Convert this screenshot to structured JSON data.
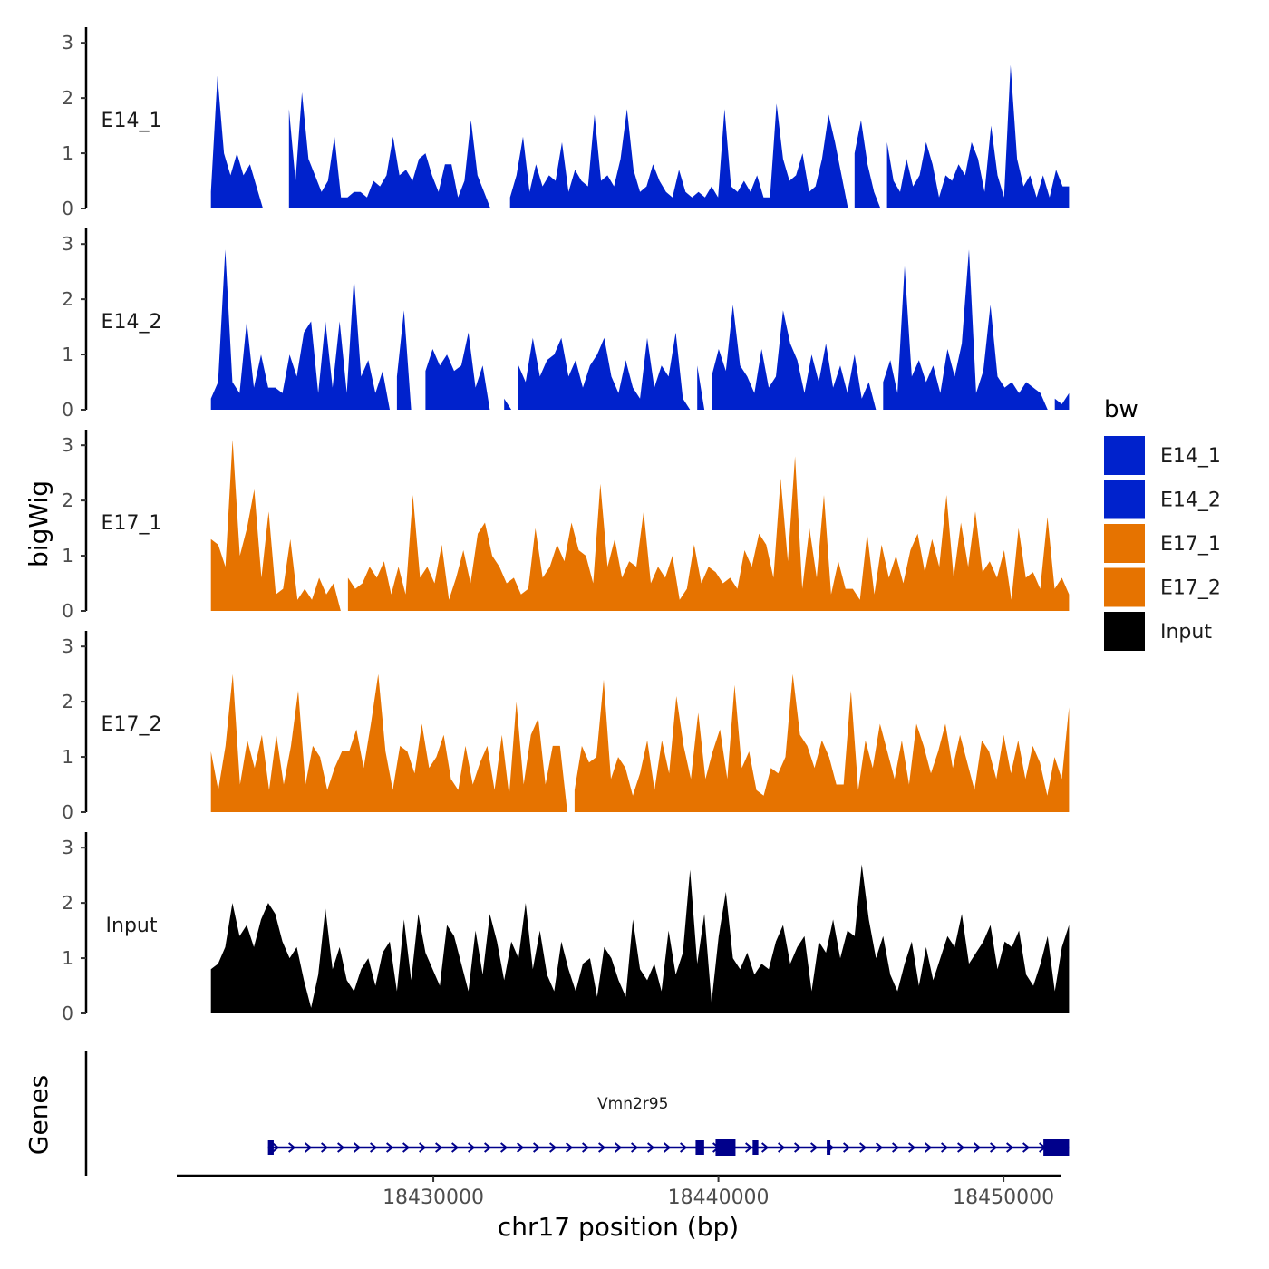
{
  "chart_data": {
    "type": "area",
    "title": "",
    "ylabel": "bigWig",
    "xlabel": "chr17 position (bp)",
    "ylim": [
      0,
      3.2
    ],
    "y_ticks": [
      0,
      1,
      2,
      3
    ],
    "xlim": [
      18421000,
      18452000
    ],
    "x_ticks": [
      18430000,
      18440000,
      18450000
    ],
    "x_tick_labels": [
      "18430000",
      "18440000",
      "18450000"
    ],
    "x_range_data": [
      18422200,
      18452300
    ],
    "legend_title": "bw",
    "legend_position": "right",
    "series": [
      {
        "name": "E14_1",
        "color": "#0022cc",
        "values": [
          0.3,
          2.4,
          1.0,
          0.6,
          1.0,
          0.6,
          0.8,
          0.4,
          0.0,
          0.0,
          0.0,
          0.0,
          1.8,
          0.5,
          2.1,
          0.9,
          0.6,
          0.3,
          0.5,
          1.3,
          0.2,
          0.2,
          0.3,
          0.3,
          0.2,
          0.5,
          0.4,
          0.6,
          1.3,
          0.6,
          0.7,
          0.5,
          0.9,
          1.0,
          0.6,
          0.3,
          0.8,
          0.8,
          0.2,
          0.5,
          1.6,
          0.6,
          0.3,
          0.0,
          0.0,
          0.0,
          0.2,
          0.6,
          1.3,
          0.3,
          0.8,
          0.4,
          0.6,
          0.5,
          1.2,
          0.3,
          0.7,
          0.5,
          0.4,
          1.7,
          0.5,
          0.6,
          0.4,
          0.9,
          1.8,
          0.7,
          0.3,
          0.4,
          0.8,
          0.5,
          0.3,
          0.2,
          0.7,
          0.3,
          0.2,
          0.3,
          0.2,
          0.4,
          0.2,
          1.8,
          0.4,
          0.3,
          0.5,
          0.3,
          0.6,
          0.2,
          0.2,
          1.9,
          0.9,
          0.5,
          0.6,
          1.0,
          0.3,
          0.4,
          0.9,
          1.7,
          1.2,
          0.6,
          0.0,
          1.0,
          1.6,
          0.8,
          0.3,
          0.0,
          1.2,
          0.5,
          0.3,
          0.9,
          0.4,
          0.6,
          1.2,
          0.8,
          0.2,
          0.6,
          0.5,
          0.8,
          0.6,
          1.2,
          0.9,
          0.3,
          1.5,
          0.6,
          0.2,
          2.6,
          0.9,
          0.4,
          0.6,
          0.2,
          0.6,
          0.2,
          0.7,
          0.4,
          0.4
        ]
      },
      {
        "name": "E14_2",
        "color": "#0022cc",
        "values": [
          0.2,
          0.5,
          2.9,
          0.5,
          0.3,
          1.6,
          0.4,
          1.0,
          0.4,
          0.4,
          0.3,
          1.0,
          0.6,
          1.4,
          1.6,
          0.3,
          1.6,
          0.4,
          1.6,
          0.3,
          2.4,
          0.6,
          0.9,
          0.3,
          0.7,
          0.0,
          0.6,
          1.8,
          0.0,
          0.0,
          0.7,
          1.1,
          0.8,
          1.0,
          0.7,
          0.8,
          1.4,
          0.4,
          0.8,
          0.0,
          0.0,
          0.2,
          0.0,
          0.8,
          0.5,
          1.3,
          0.6,
          0.9,
          1.0,
          1.3,
          0.6,
          0.9,
          0.4,
          0.8,
          1.0,
          1.3,
          0.6,
          0.3,
          0.9,
          0.4,
          0.2,
          1.3,
          0.4,
          0.8,
          0.6,
          1.4,
          0.2,
          0.0,
          0.8,
          0.0,
          0.6,
          1.1,
          0.7,
          1.9,
          0.8,
          0.6,
          0.3,
          1.1,
          0.4,
          0.6,
          1.8,
          1.2,
          0.9,
          0.3,
          1.0,
          0.5,
          1.2,
          0.4,
          0.8,
          0.3,
          1.0,
          0.2,
          0.5,
          0.0,
          0.5,
          0.9,
          0.3,
          2.6,
          0.6,
          0.9,
          0.5,
          0.8,
          0.3,
          1.1,
          0.6,
          1.2,
          2.9,
          0.3,
          0.7,
          1.9,
          0.6,
          0.4,
          0.5,
          0.3,
          0.5,
          0.4,
          0.3,
          0.0,
          0.2,
          0.1,
          0.3
        ]
      },
      {
        "name": "E17_1",
        "color": "#e67300",
        "values": [
          1.3,
          1.2,
          0.8,
          3.1,
          1.0,
          1.5,
          2.2,
          0.6,
          1.8,
          0.3,
          0.4,
          1.3,
          0.2,
          0.4,
          0.2,
          0.6,
          0.3,
          0.5,
          0.0,
          0.6,
          0.4,
          0.5,
          0.8,
          0.6,
          0.9,
          0.3,
          0.8,
          0.3,
          2.1,
          0.6,
          0.8,
          0.5,
          1.2,
          0.2,
          0.6,
          1.1,
          0.5,
          1.4,
          1.6,
          1.0,
          0.8,
          0.5,
          0.6,
          0.3,
          0.4,
          1.5,
          0.6,
          0.8,
          1.2,
          0.9,
          1.6,
          1.1,
          1.0,
          0.5,
          2.3,
          0.8,
          1.3,
          0.6,
          0.9,
          0.8,
          1.8,
          0.5,
          0.8,
          0.6,
          1.0,
          0.2,
          0.4,
          1.2,
          0.5,
          0.8,
          0.7,
          0.5,
          0.6,
          0.4,
          1.1,
          0.8,
          1.4,
          1.2,
          0.6,
          2.4,
          0.9,
          2.8,
          0.4,
          1.5,
          0.6,
          2.1,
          0.3,
          0.9,
          0.4,
          0.4,
          0.2,
          1.4,
          0.3,
          1.2,
          0.6,
          1.0,
          0.5,
          1.1,
          1.4,
          0.7,
          1.3,
          0.8,
          2.1,
          0.6,
          1.6,
          0.8,
          1.8,
          0.7,
          0.9,
          0.6,
          1.1,
          0.2,
          1.5,
          0.6,
          0.7,
          0.4,
          1.7,
          0.4,
          0.6,
          0.3
        ]
      },
      {
        "name": "E17_2",
        "color": "#e67300",
        "values": [
          1.1,
          0.4,
          1.2,
          2.5,
          0.5,
          1.3,
          0.8,
          1.4,
          0.4,
          1.4,
          0.5,
          1.2,
          2.2,
          0.5,
          1.2,
          1.0,
          0.4,
          0.8,
          1.1,
          1.1,
          1.5,
          0.8,
          1.6,
          2.5,
          1.1,
          0.4,
          1.2,
          1.1,
          0.7,
          1.6,
          0.8,
          1.0,
          1.4,
          0.6,
          0.4,
          1.2,
          0.5,
          0.9,
          1.2,
          0.4,
          1.4,
          0.3,
          2.0,
          0.5,
          1.4,
          1.7,
          0.5,
          1.2,
          1.2,
          0.0,
          0.4,
          1.2,
          0.9,
          1.0,
          2.4,
          0.6,
          1.0,
          0.8,
          0.3,
          0.7,
          1.3,
          0.4,
          1.3,
          0.7,
          2.1,
          1.2,
          0.6,
          1.8,
          0.6,
          1.1,
          1.5,
          0.6,
          2.3,
          0.8,
          1.1,
          0.4,
          0.3,
          0.8,
          0.7,
          1.0,
          2.5,
          1.4,
          1.2,
          0.8,
          1.3,
          1.0,
          0.5,
          0.5,
          2.2,
          0.4,
          1.3,
          0.8,
          1.6,
          1.1,
          0.6,
          1.3,
          0.5,
          1.6,
          1.2,
          0.7,
          1.1,
          1.6,
          0.8,
          1.4,
          0.9,
          0.4,
          1.3,
          1.1,
          0.6,
          1.4,
          0.7,
          1.3,
          0.6,
          1.2,
          0.9,
          0.3,
          1.0,
          0.6,
          1.9
        ]
      },
      {
        "name": "Input",
        "color": "#000000",
        "values": [
          0.8,
          0.9,
          1.2,
          2.0,
          1.4,
          1.6,
          1.2,
          1.7,
          2.0,
          1.8,
          1.3,
          1.0,
          1.2,
          0.6,
          0.1,
          0.7,
          1.9,
          0.8,
          1.2,
          0.6,
          0.4,
          0.8,
          1.0,
          0.5,
          1.1,
          1.3,
          0.4,
          1.7,
          0.6,
          1.8,
          1.1,
          0.8,
          0.5,
          1.6,
          1.4,
          0.9,
          0.4,
          1.5,
          0.7,
          1.8,
          1.3,
          0.6,
          1.3,
          1.0,
          2.0,
          0.8,
          1.5,
          0.7,
          0.4,
          1.3,
          0.8,
          0.4,
          0.9,
          1.0,
          0.3,
          1.2,
          1.0,
          0.6,
          0.3,
          1.7,
          0.8,
          0.6,
          0.9,
          0.4,
          1.5,
          0.7,
          1.1,
          2.6,
          0.9,
          1.8,
          0.2,
          1.4,
          2.2,
          1.0,
          0.8,
          1.1,
          0.7,
          0.9,
          0.8,
          1.3,
          1.6,
          0.9,
          1.2,
          1.4,
          0.4,
          1.3,
          1.1,
          1.7,
          1.0,
          1.5,
          1.4,
          2.7,
          1.7,
          1.0,
          1.4,
          0.7,
          0.4,
          0.9,
          1.3,
          0.5,
          1.2,
          0.6,
          1.0,
          1.4,
          1.2,
          1.8,
          0.9,
          1.1,
          1.3,
          1.6,
          0.8,
          1.3,
          1.2,
          1.5,
          0.7,
          0.5,
          0.9,
          1.4,
          0.4,
          1.2,
          1.6
        ]
      }
    ],
    "genes_track": {
      "label": "Genes",
      "gene_name": "Vmn2r95",
      "strand": "+",
      "start": 18424200,
      "end": 18452300,
      "color": "#00008b",
      "exons": [
        [
          18424200,
          18424400
        ],
        [
          18439200,
          18439500
        ],
        [
          18439900,
          18440600
        ],
        [
          18441200,
          18441400
        ],
        [
          18443800,
          18443900
        ],
        [
          18451400,
          18452300
        ]
      ]
    }
  }
}
